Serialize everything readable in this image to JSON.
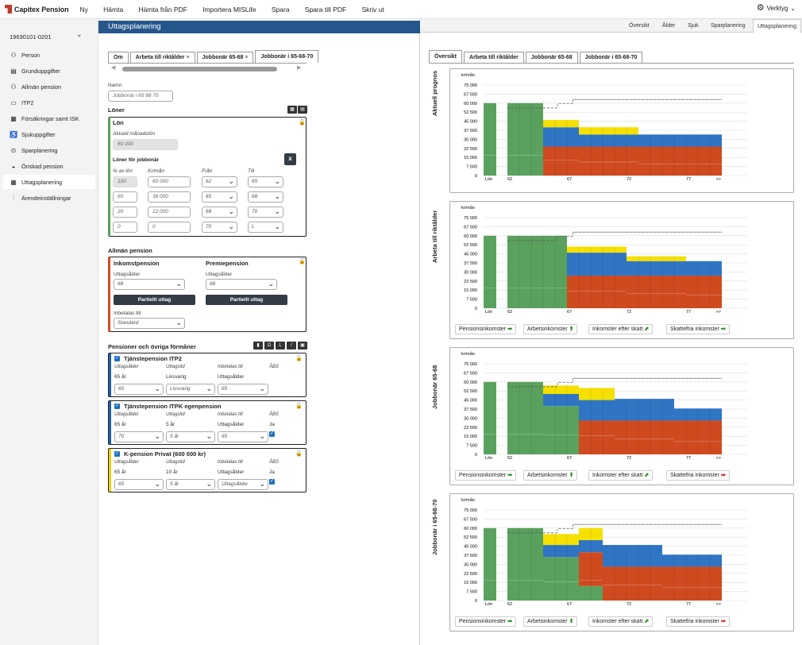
{
  "app": {
    "logo_text": "Capitex Pension"
  },
  "topmenu": [
    "Ny",
    "Hämta",
    "Hämta från PDF",
    "Importera MISLife",
    "Spara",
    "Spara till PDF",
    "Skriv ut"
  ],
  "verktyg_label": "Verktyg",
  "sidebar": {
    "person_id": "19630101-0201",
    "items": [
      {
        "label": "Person",
        "icon": "people-icon"
      },
      {
        "label": "Grunduppgifter",
        "icon": "document-icon"
      },
      {
        "label": "Allmän pension",
        "icon": "family-icon"
      },
      {
        "label": "ITP2",
        "icon": "briefcase-icon"
      },
      {
        "label": "Försäkringar samt ISK",
        "icon": "document-list-icon"
      },
      {
        "label": "Sjukuppgifter",
        "icon": "wheelchair-icon"
      },
      {
        "label": "Sparplanering",
        "icon": "piggy-bank-icon"
      },
      {
        "label": "Önskad pension",
        "icon": "moneybag-icon"
      },
      {
        "label": "Uttagsplanering",
        "icon": "calendar-icon"
      },
      {
        "label": "Ärendeinställningar",
        "icon": "sliders-icon"
      }
    ],
    "active_index": 8
  },
  "mid": {
    "header": "Uttagsplanering",
    "tabs": [
      {
        "label": "Om",
        "close": ""
      },
      {
        "label": "Arbeta till riktålder",
        "close": "×"
      },
      {
        "label": "Jobbonär 65-68",
        "close": "×"
      },
      {
        "label": "Jobbonär i 65-68-70",
        "close": ""
      }
    ],
    "active_tab": 3,
    "namn_label": "Namn",
    "namn_value": "Jobbonär i 65 68 70",
    "loner_title": "Löner",
    "lon_box_title": "Lön",
    "aktuell_label": "Aktuell månadslön",
    "aktuell_value": "60 000",
    "loner_jobbonar_label": "Löner för jobbonär",
    "x_button": "x",
    "col_headers": {
      "pct": "% av lön",
      "kr": "Kr/mån",
      "fran": "Från",
      "till": "Till"
    },
    "salary_rows": [
      {
        "pct": "100",
        "kr": "60 000",
        "fran": "62",
        "till": "65",
        "pct_disabled": true
      },
      {
        "pct": "60",
        "kr": "36 000",
        "fran": "65",
        "till": "68",
        "pct_disabled": false
      },
      {
        "pct": "20",
        "kr": "12 000",
        "fran": "68",
        "till": "70",
        "pct_disabled": false
      },
      {
        "pct": "0",
        "kr": "0",
        "fran": "70",
        "till": "L",
        "pct_disabled": false
      }
    ],
    "allman_title": "Allmän pension",
    "inkomst_title": "Inkomstpension",
    "premie_title": "Premiepension",
    "uttagsalder_label": "Uttagsålder",
    "inkomst_uttagsalder": "68",
    "premie_uttagsalder": "68",
    "partiellt_label": "Partiellt uttag",
    "inbetalas_label": "Inbetalas till",
    "inbetalas_value": "Standard",
    "pensioner_title": "Pensioner och övriga förmåner",
    "cards": [
      {
        "title": "Tjänstepension ITP2",
        "stripe": "#1e5fb4",
        "h1": "Uttagsålder",
        "h2": "Uttagstid",
        "h3": "Inbetalas till",
        "h4": "ÅBS",
        "v1": "65 år",
        "v2": "Livsvarig",
        "v3": "Uttagsålder",
        "v4": "",
        "s1": "65",
        "s2": "Livsvarig",
        "s3": "65",
        "checked": false
      },
      {
        "title": "Tjänstepension ITPK egenpension",
        "stripe": "#1e5fb4",
        "h1": "Uttagsålder",
        "h2": "Uttagstid",
        "h3": "Inbetalas till",
        "h4": "ÅBS",
        "v1": "65 år",
        "v2": "5 år",
        "v3": "Uttagsålder",
        "v4": "Ja",
        "s1": "70",
        "s2": "5 år",
        "s3": "65",
        "checked": true
      },
      {
        "title": "K-pension Privat (600 000 kr)",
        "stripe": "#f0d000",
        "h1": "Uttagsålder",
        "h2": "Uttagstid",
        "h3": "Inbetalas till",
        "h4": "ÅBS",
        "v1": "65 år",
        "v2": "10 år",
        "v3": "Uttagsålder",
        "v4": "Ja",
        "s1": "65",
        "s2": "5 år",
        "s3": "Uttagsålder",
        "checked": true
      }
    ]
  },
  "right": {
    "topnav": [
      "Översikt",
      "Ålder",
      "Sjuk",
      "Sparplanering",
      "Uttagsplanering"
    ],
    "topnav_active": 4,
    "tabs": [
      "Översikt",
      "Arbeta till riktålder",
      "Jobbonär 65-68",
      "Jobbonär i 65-68-70"
    ],
    "active_tab": 0,
    "legend": [
      {
        "label": "Pensionsinkomster",
        "arrow": "➡",
        "color": "#1a8f1a"
      },
      {
        "label": "Arbetsinkomster",
        "arrow": "⬆",
        "color": "#1a8f1a"
      },
      {
        "label": "Inkomster efter skatt",
        "arrow": "⬈",
        "color": "#1a8f1a"
      },
      {
        "label": "Skattefria inkomster",
        "arrow": "➡",
        "color": "#1a8f1a"
      }
    ],
    "legend_last_arrow_colors": [
      "#1a8f1a",
      "#1a8f1a",
      "#1a8f1a",
      "#1a8f1a"
    ]
  },
  "chart_data": [
    {
      "type": "bar",
      "title": "Aktuell prognos",
      "ylabel": "kr/mån",
      "yticks": [
        0,
        7500,
        15000,
        22500,
        30000,
        37500,
        45000,
        52500,
        60000,
        67500,
        75000
      ],
      "ylim": [
        0,
        75000
      ],
      "xticks": [
        "Lön",
        "62",
        "67",
        "72",
        "77",
        ">>"
      ],
      "segments": [
        {
          "x0": "lon",
          "x1": "lon",
          "green": 60000,
          "red": 0,
          "blue": 0,
          "yellow": 0
        },
        {
          "x0": 62,
          "x1": 65,
          "green": 60000,
          "red": 0,
          "blue": 0,
          "yellow": 0
        },
        {
          "x0": 65,
          "x1": 68,
          "green": 0,
          "red": 24000,
          "blue": 16000,
          "yellow": 6000
        },
        {
          "x0": 68,
          "x1": 73,
          "green": 0,
          "red": 24000,
          "blue": 10000,
          "yellow": 6000
        },
        {
          "x0": 73,
          "x1": 80,
          "green": 0,
          "red": 24000,
          "blue": 10000,
          "yellow": 0
        }
      ],
      "dashed_wish": 63000,
      "dashed_prev": 56000,
      "show_legend": false,
      "legend_arrows": [
        "#1a8f1a",
        "#1a8f1a",
        "#1a8f1a",
        "#1a8f1a"
      ]
    },
    {
      "type": "bar",
      "title": "Arbeta till riktålder",
      "ylabel": "kr/mån",
      "yticks": [
        0,
        7500,
        15000,
        22500,
        30000,
        37500,
        45000,
        52500,
        60000,
        67500,
        75000
      ],
      "ylim": [
        0,
        75000
      ],
      "xticks": [
        "Lön",
        "62",
        "67",
        "72",
        "77",
        ">>"
      ],
      "segments": [
        {
          "x0": "lon",
          "x1": "lon",
          "green": 60000,
          "red": 0,
          "blue": 0,
          "yellow": 0
        },
        {
          "x0": 62,
          "x1": 67,
          "green": 60000,
          "red": 0,
          "blue": 0,
          "yellow": 0
        },
        {
          "x0": 67,
          "x1": 72,
          "green": 0,
          "red": 27000,
          "blue": 19000,
          "yellow": 5000
        },
        {
          "x0": 72,
          "x1": 77,
          "green": 0,
          "red": 27000,
          "blue": 12000,
          "yellow": 4000
        },
        {
          "x0": 77,
          "x1": 80,
          "green": 0,
          "red": 27000,
          "blue": 12000,
          "yellow": 0
        }
      ],
      "dashed_wish": 63000,
      "dashed_prev": 56000,
      "show_legend": true,
      "legend_arrows": [
        "#1a8f1a",
        "#1a8f1a",
        "#1a8f1a",
        "#1a8f1a"
      ]
    },
    {
      "type": "bar",
      "title": "Jobbonär 65-68",
      "ylabel": "kr/mån",
      "yticks": [
        0,
        7500,
        15000,
        22500,
        30000,
        37500,
        45000,
        52500,
        60000,
        67500,
        75000
      ],
      "ylim": [
        0,
        75000
      ],
      "xticks": [
        "Lön",
        "62",
        "67",
        "72",
        "77",
        ">>"
      ],
      "segments": [
        {
          "x0": "lon",
          "x1": "lon",
          "green": 60000,
          "red": 0,
          "blue": 0,
          "yellow": 0
        },
        {
          "x0": 62,
          "x1": 65,
          "green": 60000,
          "red": 0,
          "blue": 0,
          "yellow": 0
        },
        {
          "x0": 65,
          "x1": 68,
          "green": 40000,
          "red": 0,
          "blue": 10000,
          "yellow": 7000
        },
        {
          "x0": 68,
          "x1": 71,
          "green": 0,
          "red": 28000,
          "blue": 17000,
          "yellow": 10000
        },
        {
          "x0": 71,
          "x1": 76,
          "green": 0,
          "red": 28000,
          "blue": 18000,
          "yellow": 0
        },
        {
          "x0": 76,
          "x1": 80,
          "green": 0,
          "red": 28000,
          "blue": 10000,
          "yellow": 0
        }
      ],
      "dashed_wish": 63000,
      "dashed_prev": 56000,
      "show_legend": true,
      "legend_arrows": [
        "#1a8f1a",
        "#1a8f1a",
        "#1a8f1a",
        "#d42020"
      ]
    },
    {
      "type": "bar",
      "title": "Jobbonär i 65-68-70",
      "ylabel": "kr/mån",
      "yticks": [
        0,
        7500,
        15000,
        22500,
        30000,
        37500,
        45000,
        52500,
        60000,
        67500,
        75000
      ],
      "ylim": [
        0,
        75000
      ],
      "xticks": [
        "Lön",
        "62",
        "67",
        "72",
        "77",
        ">>"
      ],
      "segments": [
        {
          "x0": "lon",
          "x1": "lon",
          "green": 60000,
          "red": 0,
          "blue": 0,
          "yellow": 0
        },
        {
          "x0": 62,
          "x1": 65,
          "green": 60000,
          "red": 0,
          "blue": 0,
          "yellow": 0
        },
        {
          "x0": 65,
          "x1": 68,
          "green": 36000,
          "red": 0,
          "blue": 10000,
          "yellow": 9000
        },
        {
          "x0": 68,
          "x1": 70,
          "green": 12000,
          "red": 28000,
          "blue": 10000,
          "yellow": 10000
        },
        {
          "x0": 70,
          "x1": 75,
          "green": 0,
          "red": 28000,
          "blue": 18000,
          "yellow": 0
        },
        {
          "x0": 75,
          "x1": 80,
          "green": 0,
          "red": 28000,
          "blue": 10000,
          "yellow": 0
        }
      ],
      "dashed_wish": 63000,
      "dashed_prev": 56000,
      "show_legend": true,
      "legend_arrows": [
        "#1a8f1a",
        "#1a8f1a",
        "#1a8f1a",
        "#d42020"
      ]
    }
  ],
  "colors": {
    "green": "#5aa15e",
    "red": "#cf4a1f",
    "blue": "#2f75c3",
    "yellow": "#f5e000",
    "header": "#26578c"
  }
}
